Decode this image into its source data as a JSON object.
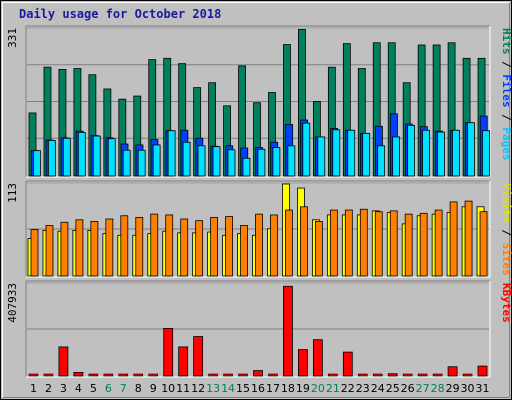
{
  "title": "Daily usage for October 2018",
  "colors": {
    "hits": "#00805c",
    "files": "#0040ff",
    "pages": "#00e0ff",
    "visits": "#ffff00",
    "sites": "#ff8000",
    "kbytes": "#ff0000",
    "weekend_day": "#00805c",
    "weekday": "#000000",
    "title": "#1a1aa0",
    "axis_hits": "#00805c",
    "axis_files": "#0040ff",
    "axis_pages": "#00c8ff",
    "axis_visits": "#e0e000",
    "axis_sites": "#ff8000",
    "axis_kbytes": "#ff0000"
  },
  "chart_data": [
    {
      "type": "bar",
      "panel": "hits-files-pages",
      "ymax_label": "331",
      "ylim": [
        0,
        331
      ],
      "right_label": [
        "Pages",
        "Files",
        "Hits"
      ],
      "categories": [
        "1",
        "2",
        "3",
        "4",
        "5",
        "6",
        "7",
        "8",
        "9",
        "10",
        "11",
        "12",
        "13",
        "14",
        "15",
        "16",
        "17",
        "18",
        "19",
        "20",
        "21",
        "22",
        "23",
        "24",
        "25",
        "26",
        "27",
        "28",
        "29",
        "30",
        "31"
      ],
      "weekend": [
        "6",
        "7",
        "13",
        "14",
        "20",
        "21",
        "27",
        "28"
      ],
      "series": [
        {
          "name": "Hits",
          "values": [
            142,
            245,
            240,
            242,
            228,
            196,
            173,
            180,
            262,
            265,
            253,
            199,
            210,
            158,
            248,
            165,
            188,
            296,
            330,
            168,
            245,
            298,
            242,
            300,
            300,
            210,
            295,
            295,
            300,
            265,
            265
          ]
        },
        {
          "name": "Files",
          "values": [
            57,
            81,
            86,
            101,
            91,
            86,
            72,
            70,
            82,
            102,
            103,
            85,
            67,
            68,
            63,
            64,
            76,
            116,
            126,
            88,
            107,
            103,
            96,
            112,
            140,
            117,
            111,
            101,
            103,
            120,
            135
          ]
        },
        {
          "name": "Pages",
          "values": [
            57,
            80,
            85,
            98,
            90,
            84,
            58,
            58,
            70,
            102,
            76,
            68,
            66,
            59,
            40,
            60,
            64,
            68,
            119,
            88,
            104,
            103,
            96,
            68,
            88,
            114,
            103,
            99,
            103,
            120,
            102
          ]
        }
      ]
    },
    {
      "type": "bar",
      "panel": "visits-sites",
      "ymax_label": "113",
      "ylim": [
        0,
        113
      ],
      "right_label": [
        "Sites",
        "Visits"
      ],
      "categories": [
        "1",
        "2",
        "3",
        "4",
        "5",
        "6",
        "7",
        "8",
        "9",
        "10",
        "11",
        "12",
        "13",
        "14",
        "15",
        "16",
        "17",
        "18",
        "19",
        "20",
        "21",
        "22",
        "23",
        "24",
        "25",
        "26",
        "27",
        "28",
        "29",
        "30",
        "31"
      ],
      "series": [
        {
          "name": "Visits",
          "values": [
            46,
            56,
            55,
            56,
            56,
            52,
            50,
            50,
            52,
            55,
            53,
            53,
            54,
            50,
            52,
            50,
            58,
            113,
            108,
            69,
            75,
            75,
            75,
            80,
            78,
            64,
            74,
            76,
            78,
            85,
            85
          ]
        },
        {
          "name": "Sites",
          "values": [
            57,
            62,
            66,
            69,
            67,
            70,
            74,
            72,
            76,
            75,
            70,
            68,
            72,
            73,
            62,
            76,
            75,
            81,
            85,
            67,
            81,
            81,
            82,
            79,
            80,
            76,
            77,
            81,
            91,
            92,
            79
          ]
        }
      ]
    },
    {
      "type": "bar",
      "panel": "kbytes",
      "ymax_label": "407933",
      "ylim": [
        0,
        407933
      ],
      "right_label": [
        "KBytes"
      ],
      "categories": [
        "1",
        "2",
        "3",
        "4",
        "5",
        "6",
        "7",
        "8",
        "9",
        "10",
        "11",
        "12",
        "13",
        "14",
        "15",
        "16",
        "17",
        "18",
        "19",
        "20",
        "21",
        "22",
        "23",
        "24",
        "25",
        "26",
        "27",
        "28",
        "29",
        "30",
        "31"
      ],
      "series": [
        {
          "name": "KBytes",
          "values": [
            0,
            0,
            129000,
            16000,
            0,
            0,
            0,
            0,
            0,
            211000,
            129000,
            175000,
            0,
            0,
            0,
            24000,
            0,
            398000,
            117000,
            161000,
            0,
            106000,
            0,
            0,
            10000,
            0,
            0,
            0,
            41000,
            0,
            44000
          ]
        }
      ]
    }
  ]
}
